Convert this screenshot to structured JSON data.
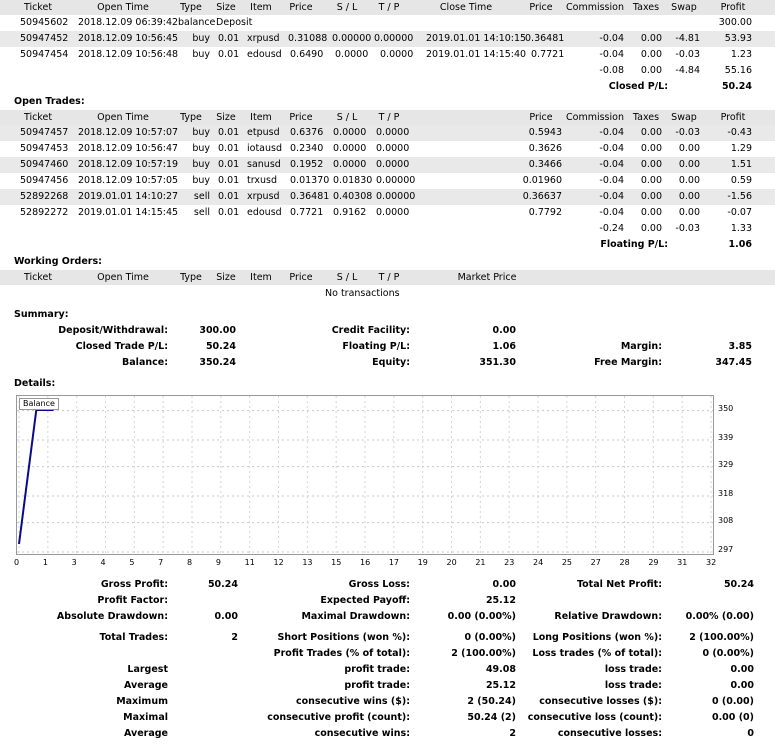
{
  "closed": {
    "headers": [
      "Ticket",
      "Open Time",
      "Type",
      "Size",
      "Item",
      "Price",
      "S / L",
      "T / P",
      "Close Time",
      "Price",
      "Commission",
      "Taxes",
      "Swap",
      "Profit"
    ],
    "rows": [
      [
        "50945602",
        "2018.12.09 06:39:42",
        "balance",
        "Deposit",
        "",
        "",
        "",
        "",
        "",
        "",
        "",
        "",
        "",
        "300.00"
      ],
      [
        "50947452",
        "2018.12.09 10:56:45",
        "buy",
        "0.01",
        "xrpusd",
        "0.31088",
        "0.00000",
        "0.00000",
        "2019.01.01 14:10:15",
        "0.36481",
        "-0.04",
        "0.00",
        "-4.81",
        "53.93"
      ],
      [
        "50947454",
        "2018.12.09 10:56:48",
        "buy",
        "0.01",
        "edousd",
        "0.6490",
        "0.0000",
        "0.0000",
        "2019.01.01 14:15:40",
        "0.7721",
        "-0.04",
        "0.00",
        "-0.03",
        "1.23"
      ]
    ],
    "totals": {
      "commission": "-0.08",
      "taxes": "0.00",
      "swap": "-4.84",
      "profit": "55.16"
    },
    "pl_label": "Closed P/L:",
    "pl_value": "50.24"
  },
  "open": {
    "title": "Open Trades:",
    "headers": [
      "Ticket",
      "Open Time",
      "Type",
      "Size",
      "Item",
      "Price",
      "S / L",
      "T / P",
      "Price",
      "Commission",
      "Taxes",
      "Swap",
      "Profit"
    ],
    "rows": [
      [
        "50947457",
        "2018.12.09 10:57:07",
        "buy",
        "0.01",
        "etpusd",
        "0.6376",
        "0.0000",
        "0.0000",
        "0.5943",
        "-0.04",
        "0.00",
        "-0.03",
        "-0.43"
      ],
      [
        "50947453",
        "2018.12.09 10:56:47",
        "buy",
        "0.01",
        "iotausd",
        "0.2340",
        "0.0000",
        "0.0000",
        "0.3626",
        "-0.04",
        "0.00",
        "0.00",
        "1.29"
      ],
      [
        "50947460",
        "2018.12.09 10:57:19",
        "buy",
        "0.01",
        "sanusd",
        "0.1952",
        "0.0000",
        "0.0000",
        "0.3466",
        "-0.04",
        "0.00",
        "0.00",
        "1.51"
      ],
      [
        "50947456",
        "2018.12.09 10:57:05",
        "buy",
        "0.01",
        "trxusd",
        "0.01370",
        "0.01830",
        "0.00000",
        "0.01960",
        "-0.04",
        "0.00",
        "0.00",
        "0.59"
      ],
      [
        "52892268",
        "2019.01.01 14:10:27",
        "sell",
        "0.01",
        "xrpusd",
        "0.36481",
        "0.40308",
        "0.00000",
        "0.36637",
        "-0.04",
        "0.00",
        "0.00",
        "-1.56"
      ],
      [
        "52892272",
        "2019.01.01 14:15:45",
        "sell",
        "0.01",
        "edousd",
        "0.7721",
        "0.9162",
        "0.0000",
        "0.7792",
        "-0.04",
        "0.00",
        "0.00",
        "-0.07"
      ]
    ],
    "totals": {
      "commission": "-0.24",
      "taxes": "0.00",
      "swap": "-0.03",
      "profit": "1.33"
    },
    "pl_label": "Floating P/L:",
    "pl_value": "1.06"
  },
  "working": {
    "title": "Working Orders:",
    "headers": [
      "Ticket",
      "Open Time",
      "Type",
      "Size",
      "Item",
      "Price",
      "S / L",
      "T / P",
      "Market Price"
    ],
    "empty": "No transactions"
  },
  "summary": {
    "title": "Summary:",
    "deposit_label": "Deposit/Withdrawal:",
    "deposit_value": "300.00",
    "closed_label": "Closed Trade P/L:",
    "closed_value": "50.24",
    "balance_label": "Balance:",
    "balance_value": "350.24",
    "credit_label": "Credit Facility:",
    "credit_value": "0.00",
    "floating_label": "Floating P/L:",
    "floating_value": "1.06",
    "equity_label": "Equity:",
    "equity_value": "351.30",
    "margin_label": "Margin:",
    "margin_value": "3.85",
    "free_margin_label": "Free Margin:",
    "free_margin_value": "347.45"
  },
  "details": {
    "title": "Details:"
  },
  "chart_data": {
    "type": "line",
    "legend": "Balance",
    "line_color": "#0a0a8a",
    "x_ticks": [
      "0",
      "1",
      "3",
      "4",
      "5",
      "7",
      "8",
      "9",
      "11",
      "12",
      "13",
      "15",
      "16",
      "17",
      "19",
      "20",
      "21",
      "23",
      "24",
      "25",
      "27",
      "28",
      "29",
      "31",
      "32"
    ],
    "y_ticks": [
      "350",
      "339",
      "329",
      "318",
      "308",
      "297"
    ],
    "ylim": [
      297,
      351
    ],
    "x": [
      0,
      1,
      2
    ],
    "y": [
      300,
      350.24,
      350.24
    ],
    "grid": true
  },
  "stats": [
    [
      "Gross Profit:",
      "50.24",
      "Gross Loss:",
      "0.00",
      "Total Net Profit:",
      "50.24"
    ],
    [
      "Profit Factor:",
      "",
      "Expected Payoff:",
      "25.12",
      "",
      ""
    ],
    [
      "Absolute Drawdown:",
      "0.00",
      "Maximal Drawdown:",
      "0.00 (0.00%)",
      "Relative Drawdown:",
      "0.00% (0.00)"
    ],
    [
      "Total Trades:",
      "2",
      "Short Positions (won %):",
      "0 (0.00%)",
      "Long Positions (won %):",
      "2 (100.00%)"
    ],
    [
      "",
      "",
      "Profit Trades (% of total):",
      "2 (100.00%)",
      "Loss trades (% of total):",
      "0 (0.00%)"
    ],
    [
      "Largest",
      "",
      "profit trade:",
      "49.08",
      "loss trade:",
      "0.00"
    ],
    [
      "Average",
      "",
      "profit trade:",
      "25.12",
      "loss trade:",
      "0.00"
    ],
    [
      "Maximum",
      "",
      "consecutive wins ($):",
      "2 (50.24)",
      "consecutive losses ($):",
      "0 (0.00)"
    ],
    [
      "Maximal",
      "",
      "consecutive profit (count):",
      "50.24 (2)",
      "consecutive loss (count):",
      "0.00 (0)"
    ],
    [
      "Average",
      "",
      "consecutive wins:",
      "2",
      "consecutive losses:",
      "0"
    ]
  ]
}
